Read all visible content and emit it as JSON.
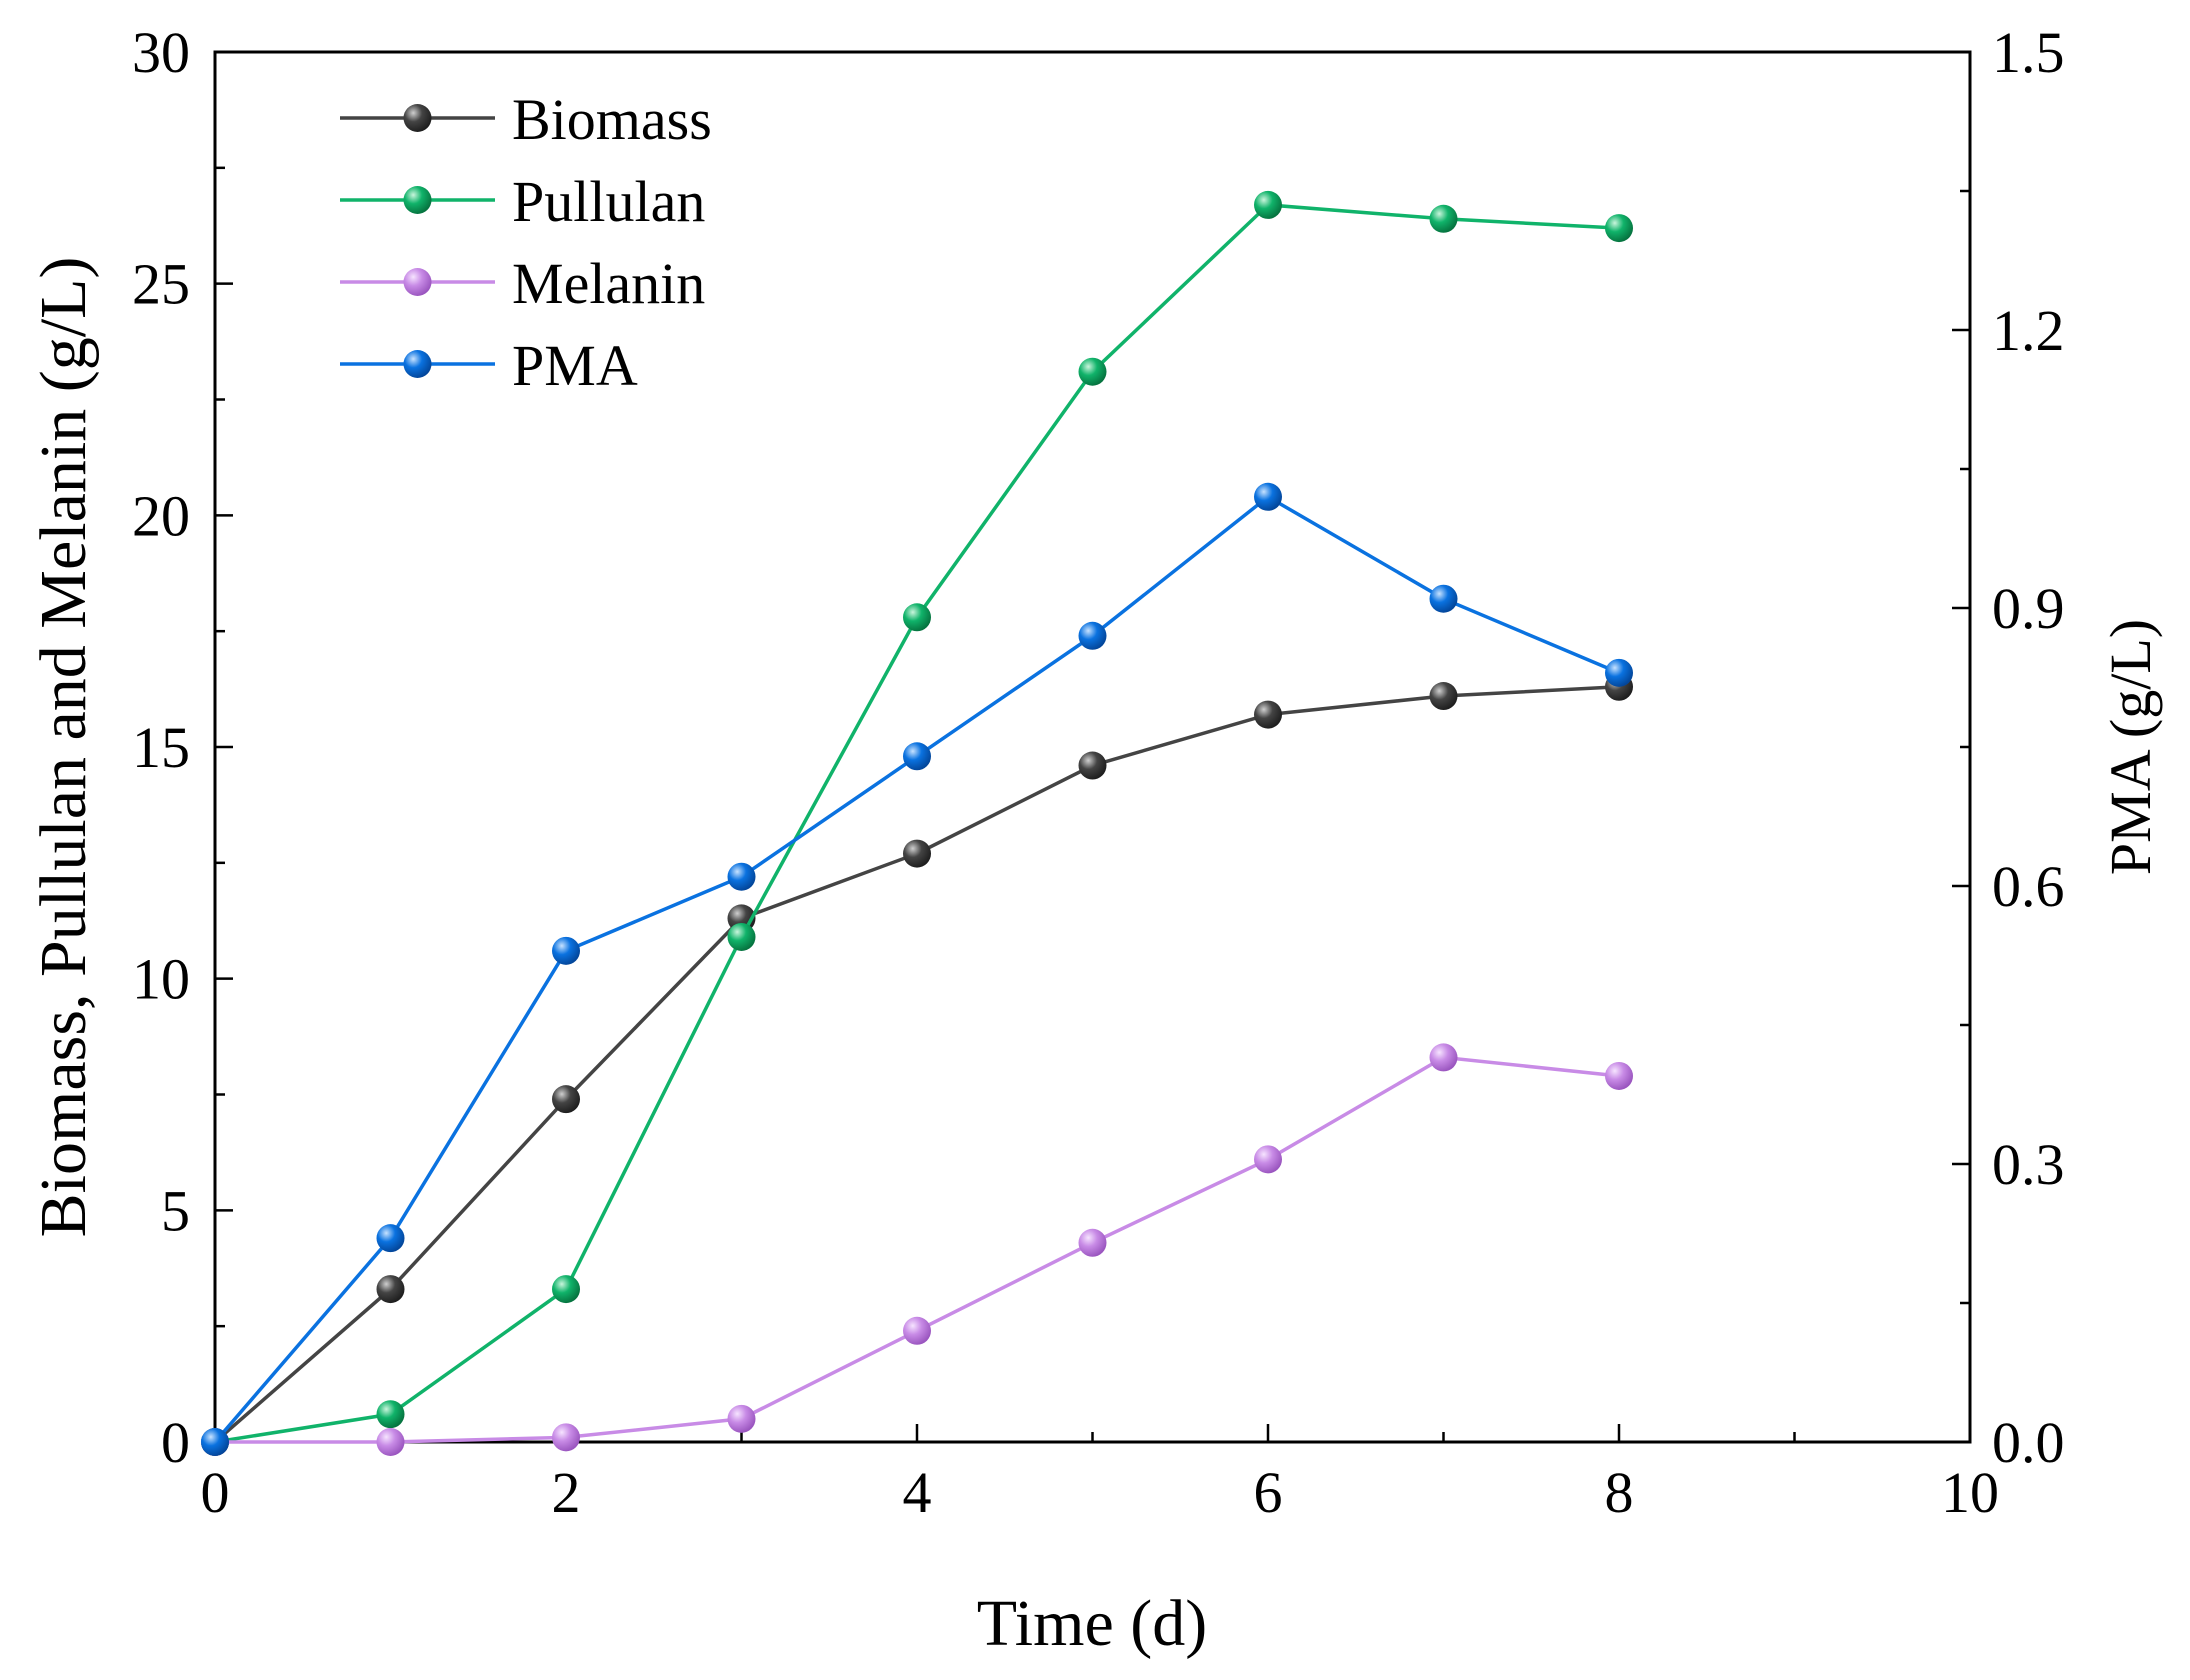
{
  "chart_data": {
    "type": "line",
    "xlabel": "Time (d)",
    "ylabel_left": "Biomass, Pullulan and Melanin (g/L)",
    "ylabel_right": "PMA (g/L)",
    "xlim": [
      0,
      10
    ],
    "ylim_left": [
      0,
      30
    ],
    "ylim_right": [
      0,
      1.5
    ],
    "x_ticks": [
      "0",
      "2",
      "4",
      "6",
      "8",
      "10"
    ],
    "y_left_ticks": [
      "0",
      "5",
      "10",
      "15",
      "20",
      "25",
      "30"
    ],
    "y_right_ticks": [
      "0.0",
      "0.3",
      "0.6",
      "0.9",
      "1.2",
      "1.5"
    ],
    "legend_position": "top-left",
    "series": [
      {
        "name": "Biomass",
        "axis": "left",
        "color": "#444444",
        "x": [
          0,
          1,
          2,
          3,
          4,
          5,
          6,
          7,
          8
        ],
        "y": [
          0,
          3.3,
          7.4,
          11.3,
          12.7,
          14.6,
          15.7,
          16.1,
          16.3
        ]
      },
      {
        "name": "Pullulan",
        "axis": "left",
        "color": "#10b36a",
        "x": [
          0,
          1,
          2,
          3,
          4,
          5,
          6,
          7,
          8
        ],
        "y": [
          0,
          0.6,
          3.3,
          10.9,
          17.8,
          23.1,
          26.7,
          26.4,
          26.2
        ]
      },
      {
        "name": "Melanin",
        "axis": "left",
        "color": "#c88be6",
        "x": [
          0,
          1,
          2,
          3,
          4,
          5,
          6,
          7,
          8
        ],
        "y": [
          0,
          0,
          0.1,
          0.5,
          2.4,
          4.3,
          6.1,
          8.3,
          7.9
        ]
      },
      {
        "name": "PMA",
        "axis": "right",
        "color": "#0a72e0",
        "x": [
          0,
          1,
          2,
          3,
          4,
          5,
          6,
          7,
          8
        ],
        "y": [
          0,
          0.22,
          0.53,
          0.61,
          0.74,
          0.87,
          1.02,
          0.91,
          0.83
        ]
      }
    ]
  }
}
